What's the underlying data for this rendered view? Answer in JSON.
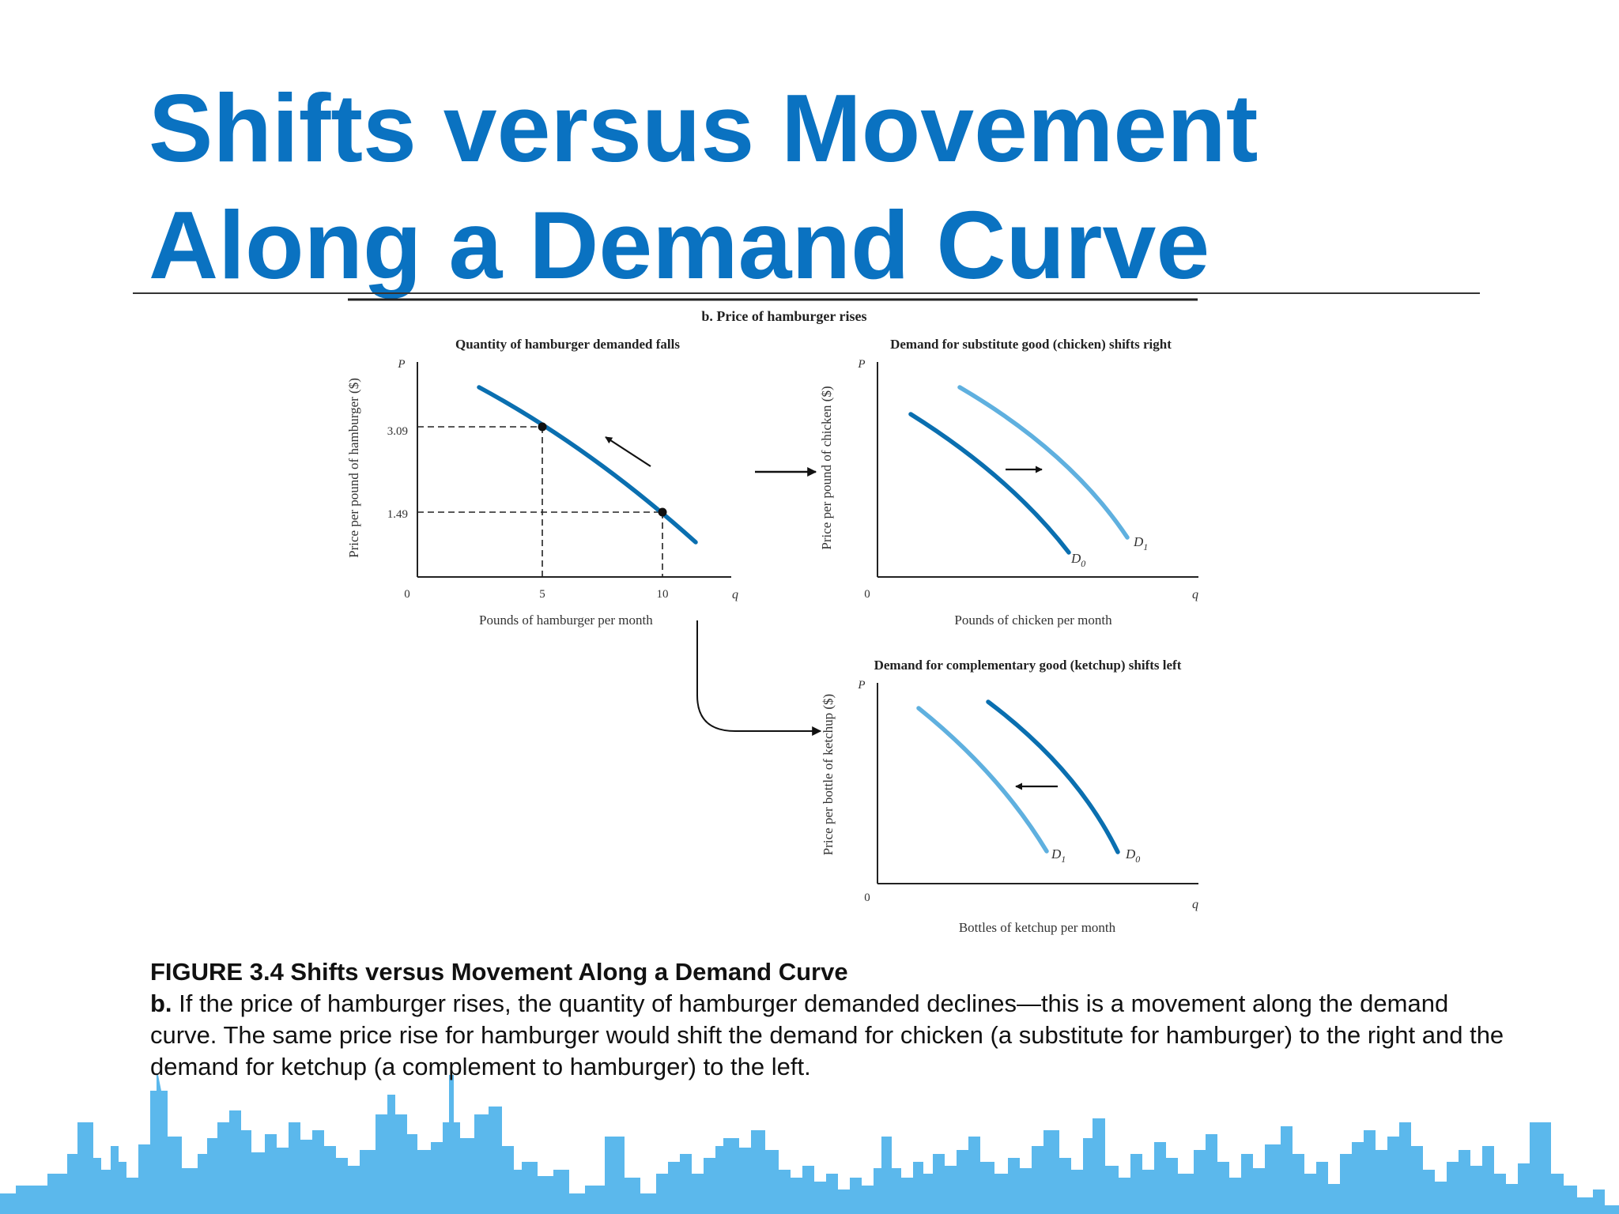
{
  "slide": {
    "title_line1": "Shifts versus Movement",
    "title_line2": "Along a Demand Curve"
  },
  "figure": {
    "header": "b. Price of hamburger rises"
  },
  "chart_data": [
    {
      "type": "line",
      "title": "Quantity of hamburger demanded falls",
      "xlabel": "Pounds of hamburger per month",
      "ylabel": "Price per pound of hamburger ($)",
      "x_axis_symbol": "q",
      "y_axis_symbol": "P",
      "origin_label": "0",
      "x_ticks": [
        "5",
        "10"
      ],
      "y_ticks": [
        "3.09",
        "1.49"
      ],
      "points": [
        {
          "x": 5,
          "y": 3.09
        },
        {
          "x": 10,
          "y": 1.49
        }
      ],
      "annotation": "movement along curve toward higher price, lower quantity"
    },
    {
      "type": "line",
      "title": "Demand for substitute good (chicken) shifts right",
      "xlabel": "Pounds of chicken per month",
      "ylabel": "Price per pound of chicken ($)",
      "x_axis_symbol": "q",
      "y_axis_symbol": "P",
      "origin_label": "0",
      "series": [
        {
          "name": "D0",
          "label_main": "D",
          "label_sub": "0",
          "color": "#0a6fb0"
        },
        {
          "name": "D1",
          "label_main": "D",
          "label_sub": "1",
          "color": "#5fb0df"
        }
      ],
      "annotation": "shift right"
    },
    {
      "type": "line",
      "title": "Demand for complementary good (ketchup) shifts left",
      "xlabel": "Bottles of ketchup per month",
      "ylabel": "Price per bottle of ketchup ($)",
      "x_axis_symbol": "q",
      "y_axis_symbol": "P",
      "origin_label": "0",
      "series": [
        {
          "name": "D1",
          "label_main": "D",
          "label_sub": "1",
          "color": "#5fb0df"
        },
        {
          "name": "D0",
          "label_main": "D",
          "label_sub": "0",
          "color": "#0a6fb0"
        }
      ],
      "annotation": "shift left"
    }
  ],
  "caption": {
    "title": "FIGURE 3.4 Shifts versus Movement Along a Demand Curve",
    "lead": "b.",
    "body": " If the price of hamburger rises, the quantity of hamburger demanded declines—this is a movement along the demand curve. The same price rise for hamburger would shift the demand for chicken (a substitute for hamburger) to the right and the demand for ketchup (a complement to hamburger) to the left."
  },
  "colors": {
    "title": "#0a72c1",
    "curve_dark": "#0a6fb0",
    "curve_light": "#5fb0df",
    "skyline": "#5bb8ec"
  }
}
